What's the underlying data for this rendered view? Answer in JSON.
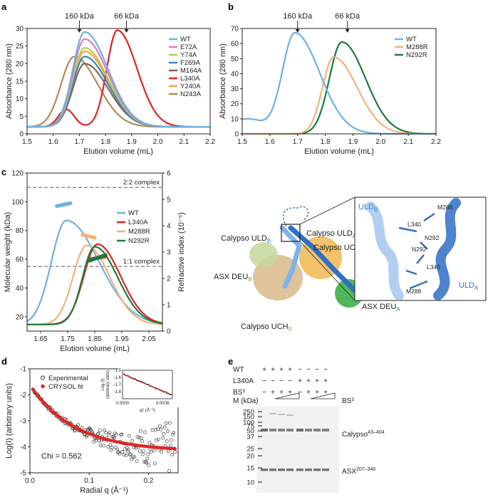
{
  "panels": {
    "a": {
      "letter": "a"
    },
    "b": {
      "letter": "b"
    },
    "c": {
      "letter": "c"
    },
    "d": {
      "letter": "d"
    },
    "e": {
      "letter": "e"
    }
  },
  "chart_data": [
    {
      "panel": "a",
      "type": "line",
      "xlabel": "Elution volume (mL)",
      "ylabel": "Absorbance (280 nm)",
      "xlim": [
        1.5,
        2.2
      ],
      "ylim": [
        0,
        30
      ],
      "xticks": [
        "1.5",
        "1.6",
        "1.7",
        "1.8",
        "1.9",
        "2.0",
        "2.1",
        "2.2"
      ],
      "yticks": [
        "0",
        "5",
        "10",
        "15",
        "20",
        "25",
        "30"
      ],
      "markers": [
        {
          "label": "160 kDa",
          "x": 1.7
        },
        {
          "label": "66 kDa",
          "x": 1.88
        }
      ],
      "legend_position": "top-right",
      "series": [
        {
          "name": "WT",
          "color": "#6fb1e0",
          "baseline": 2,
          "peaks": [
            [
              1.72,
              27,
              0.045,
              0.09
            ]
          ]
        },
        {
          "name": "E72A",
          "color": "#e178c0",
          "baseline": 2,
          "peaks": [
            [
              1.72,
              25,
              0.045,
              0.09
            ]
          ]
        },
        {
          "name": "Y74A",
          "color": "#b4cc54",
          "baseline": 2,
          "peaks": [
            [
              1.72,
              22.5,
              0.045,
              0.09
            ]
          ]
        },
        {
          "name": "F269A",
          "color": "#3a86c6",
          "baseline": 2,
          "peaks": [
            [
              1.72,
              20,
              0.045,
              0.09
            ]
          ]
        },
        {
          "name": "M164A",
          "color": "#7a6a5a",
          "baseline": 2,
          "peaks": [
            [
              1.72,
              18,
              0.045,
              0.09
            ]
          ]
        },
        {
          "name": "L340A",
          "color": "#e02424",
          "baseline": 2,
          "peaks": [
            [
              1.65,
              5,
              0.03,
              0.03
            ],
            [
              1.845,
              27.5,
              0.04,
              0.075
            ]
          ]
        },
        {
          "name": "Y240A",
          "color": "#f0a830",
          "baseline": 2,
          "peaks": [
            [
              1.72,
              21.5,
              0.045,
              0.09
            ]
          ]
        },
        {
          "name": "N243A",
          "color": "#b08a5a",
          "baseline": 2,
          "peaks": [
            [
              1.68,
              20,
              0.05,
              0.09
            ]
          ]
        }
      ]
    },
    {
      "panel": "b",
      "type": "line",
      "xlabel": "Elution volume (mL)",
      "ylabel": "Absorbance (280 nm)",
      "xlim": [
        1.5,
        2.2
      ],
      "ylim": [
        0,
        70
      ],
      "xticks": [
        "1.5",
        "1.6",
        "1.7",
        "1.8",
        "1.9",
        "2.0",
        "2.1",
        "2.2"
      ],
      "yticks": [
        "0",
        "10",
        "20",
        "30",
        "40",
        "50",
        "60",
        "70"
      ],
      "markers": [
        {
          "label": "160 kDa",
          "x": 1.7
        },
        {
          "label": "66 kDa",
          "x": 1.88
        }
      ],
      "legend_position": "top-right",
      "series": [
        {
          "name": "WT",
          "color": "#6fb1e0",
          "baseline": 0,
          "peaks": [
            [
              1.52,
              10,
              0.06,
              0.06
            ],
            [
              1.69,
              67,
              0.045,
              0.09
            ]
          ]
        },
        {
          "name": "M288R",
          "color": "#f4b27a",
          "baseline": 0,
          "peaks": [
            [
              1.83,
              51,
              0.04,
              0.085
            ]
          ]
        },
        {
          "name": "N292R",
          "color": "#1e7a3c",
          "baseline": 0,
          "peaks": [
            [
              1.86,
              61,
              0.045,
              0.085
            ]
          ]
        }
      ]
    },
    {
      "panel": "c",
      "type": "line",
      "xlabel": "Elution volume (mL)",
      "ylabel": "Molecular weight (kDa)",
      "y2label": "Refractive index (10⁻⁵)",
      "xlim": [
        1.6,
        2.1
      ],
      "ylim": [
        10,
        120
      ],
      "y2lim": [
        0,
        6
      ],
      "xticks": [
        "1.65",
        "1.75",
        "1.85",
        "1.95",
        "2.05"
      ],
      "yticks": [
        "20",
        "40",
        "60",
        "80",
        "100",
        "120"
      ],
      "y2ticks": [
        "0",
        "1",
        "2",
        "3",
        "4",
        "5",
        "6"
      ],
      "reference_lines": [
        {
          "label": "2:2 complex",
          "y": 110
        },
        {
          "label": "1:1 complex",
          "y": 55
        }
      ],
      "legend_position": "top-right",
      "series": [
        {
          "name": "WT",
          "color": "#6fb1e0",
          "ri_peak": [
            1.745,
            3.95,
            0.055,
            0.12
          ],
          "mw_range": [
            1.71,
            1.76
          ],
          "mw": [
            97,
            99
          ]
        },
        {
          "name": "L340A",
          "color": "#e02424",
          "ri_peak": [
            1.86,
            3.05,
            0.05,
            0.085
          ],
          "mw_range": [
            1.835,
            1.89
          ],
          "mw": [
            60,
            62
          ]
        },
        {
          "name": "M288R",
          "color": "#f4b27a",
          "ri_peak": [
            1.82,
            3.0,
            0.05,
            0.085
          ],
          "mw_range": [
            1.805,
            1.85
          ],
          "mw": [
            77,
            75
          ]
        },
        {
          "name": "N292R",
          "color": "#1e7a3c",
          "ri_peak": [
            1.85,
            2.95,
            0.045,
            0.085
          ],
          "mw_range": [
            1.83,
            1.89
          ],
          "mw": [
            59,
            63
          ]
        }
      ]
    },
    {
      "panel": "d",
      "type": "scatter",
      "xlabel": "Radial q (Å⁻¹)",
      "ylabel": "Log(I) (arbitrary units)",
      "xlim": [
        0,
        0.25
      ],
      "ylim": [
        -5,
        -1
      ],
      "xticks": [
        "0.0",
        "0.1",
        "0.2"
      ],
      "yticks": [
        "-5",
        "-4",
        "-3",
        "-2",
        "-1"
      ],
      "legend_position": "top-left",
      "series": [
        {
          "name": "Experimental",
          "color": "#222222"
        },
        {
          "name": "CRYSOL fit",
          "color": "#e02424"
        }
      ],
      "annotation": "Chi = 0.562",
      "inset": {
        "xlabel": "q² (Å⁻²)",
        "ylabel": "Log (I)\n(arbitrary units)",
        "xlim": [
          0,
          0.001
        ],
        "ylim": [
          -1.9,
          -1.5
        ],
        "xticks": [
          "0.0000",
          "0.0008"
        ],
        "yticks": [
          "-1.5",
          "-1.6",
          "-1.7",
          "-1.8"
        ]
      }
    }
  ],
  "structure": {
    "labels": {
      "uld_b": "Calypso ULD",
      "uld_b_sub": "B",
      "uld_a": "Calypso ULD",
      "uld_a_sub": "A",
      "uch_a": "Calypso UCH",
      "uch_a_sub": "A",
      "uch_b": "Calypso UCH",
      "uch_b_sub": "B",
      "deu_b": "ASX DEU",
      "deu_b_sub": "B",
      "deu_a": "ASX DEU",
      "deu_a_sub": "A"
    },
    "zoom": {
      "uld_b": "ULD",
      "uld_b_sub": "B",
      "uld_a": "ULD",
      "uld_a_sub": "A",
      "res1": "M288",
      "res2": "L340",
      "res3": "N292",
      "res4": "N292",
      "res5": "L340",
      "res6": "M288"
    }
  },
  "gel": {
    "rows": [
      {
        "label": "WT",
        "marks": [
          "+",
          "+",
          "+",
          "+",
          "−",
          "−",
          "−",
          "−"
        ]
      },
      {
        "label": "L340A",
        "marks": [
          "−",
          "−",
          "−",
          "−",
          "+",
          "+",
          "+",
          "+"
        ]
      },
      {
        "label": "BS³",
        "marks": [
          "−",
          "+",
          "+",
          "+",
          "−",
          "+",
          "+",
          "+"
        ]
      }
    ],
    "marker_header": "M (kDa)",
    "bs3_label": "BS³",
    "mw_labels": [
      "250",
      "150",
      "100",
      "75",
      "50",
      "37",
      "25",
      "20",
      "15",
      "10"
    ],
    "calypso_label": "Calypso",
    "calypso_sup": "43–404",
    "asx_label": "ASX",
    "asx_sup": "207–340"
  }
}
